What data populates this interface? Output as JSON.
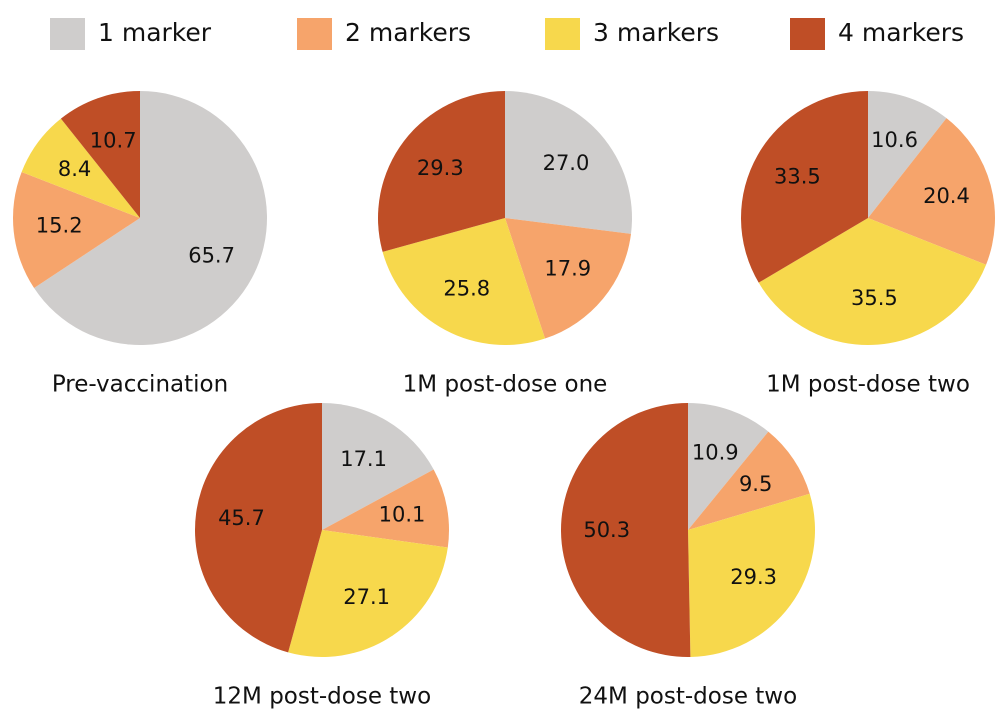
{
  "legend": {
    "labels": [
      "1 marker",
      "2 markers",
      "3 markers",
      "4 markers"
    ],
    "colors": [
      "#cfcdcc",
      "#f6a46b",
      "#f7d84c",
      "#bf4e26"
    ]
  },
  "chart_data": [
    {
      "type": "pie",
      "title": "Pre-vaccination",
      "values": [
        65.7,
        15.2,
        8.4,
        10.7
      ],
      "value_labels": [
        "65.7",
        "15.2",
        "8.4",
        "10.7"
      ]
    },
    {
      "type": "pie",
      "title": "1M post-dose one",
      "values": [
        27.0,
        17.9,
        25.8,
        29.3
      ],
      "value_labels": [
        "27.0",
        "17.9",
        "25.8",
        "29.3"
      ]
    },
    {
      "type": "pie",
      "title": "1M post-dose two",
      "values": [
        10.6,
        20.4,
        35.5,
        33.5
      ],
      "value_labels": [
        "10.6",
        "20.4",
        "35.5",
        "33.5"
      ]
    },
    {
      "type": "pie",
      "title": "12M post-dose two",
      "values": [
        17.1,
        10.1,
        27.1,
        45.7
      ],
      "value_labels": [
        "17.1",
        "10.1",
        "27.1",
        "45.7"
      ]
    },
    {
      "type": "pie",
      "title": "24M post-dose two",
      "values": [
        10.9,
        9.5,
        29.3,
        50.3
      ],
      "value_labels": [
        "10.9",
        "9.5",
        "29.3",
        "50.3"
      ]
    }
  ]
}
